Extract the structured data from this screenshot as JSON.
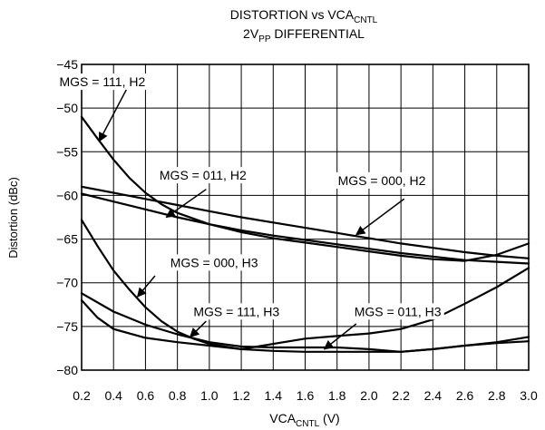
{
  "chart_data": {
    "type": "line",
    "title": {
      "line1_prefix": "DISTORTION vs VCA",
      "line1_sub": "CNTL",
      "line2_prefix": "2V",
      "line2_sub": "PP",
      "line2_suffix": " DIFFERENTIAL"
    },
    "xlabel": {
      "prefix": "VCA",
      "sub": "CNTL",
      "suffix": " (V)"
    },
    "ylabel": "Distortion (dBc)",
    "xlim": [
      0.2,
      3.0
    ],
    "ylim": [
      -80,
      -45
    ],
    "x_ticks": [
      0.2,
      0.4,
      0.6,
      0.8,
      1.0,
      1.2,
      1.4,
      1.6,
      1.8,
      2.0,
      2.2,
      2.4,
      2.6,
      2.8,
      3.0
    ],
    "x_tick_labels": [
      "0.2",
      "0.4",
      "0.6",
      "0.8",
      "1.0",
      "1.2",
      "1.4",
      "1.6",
      "1.8",
      "2.0",
      "2.2",
      "2.4",
      "2.6",
      "2.8",
      "3.0"
    ],
    "y_ticks": [
      -45,
      -50,
      -55,
      -60,
      -65,
      -70,
      -75,
      -80
    ],
    "y_tick_labels": [
      "−45",
      "−50",
      "−55",
      "−60",
      "−65",
      "−70",
      "−75",
      "−80"
    ],
    "grid": true,
    "line_color": "#000000",
    "grid_color": "#000000",
    "series": [
      {
        "name": "MGS = 111, H2",
        "x": [
          0.2,
          0.3,
          0.4,
          0.5,
          0.6,
          0.7,
          0.8,
          1.0,
          1.2,
          1.4,
          1.6,
          1.8,
          2.0,
          2.2,
          2.4,
          2.6,
          2.8,
          3.0
        ],
        "y": [
          -51,
          -53.5,
          -55.9,
          -58.0,
          -59.7,
          -61.0,
          -62.0,
          -63.3,
          -64.2,
          -64.9,
          -65.4,
          -65.9,
          -66.4,
          -66.9,
          -67.3,
          -67.5,
          -66.8,
          -65.5
        ]
      },
      {
        "name": "MGS = 011, H2",
        "x": [
          0.2,
          0.4,
          0.6,
          0.8,
          1.0,
          1.2,
          1.4,
          1.6,
          1.8,
          2.0,
          2.2,
          2.4,
          2.6,
          2.8,
          3.0
        ],
        "y": [
          -59.8,
          -60.7,
          -61.6,
          -62.5,
          -63.3,
          -64.0,
          -64.6,
          -65.1,
          -65.6,
          -66.1,
          -66.6,
          -67.0,
          -67.4,
          -67.6,
          -67.8
        ]
      },
      {
        "name": "MGS = 000, H2",
        "x": [
          0.2,
          0.4,
          0.6,
          0.8,
          1.0,
          1.2,
          1.4,
          1.6,
          1.8,
          2.0,
          2.2,
          2.4,
          2.6,
          2.8,
          3.0
        ],
        "y": [
          -59.0,
          -59.7,
          -60.4,
          -61.1,
          -61.8,
          -62.5,
          -63.1,
          -63.7,
          -64.3,
          -64.9,
          -65.5,
          -66.0,
          -66.5,
          -66.9,
          -67.2
        ]
      },
      {
        "name": "MGS = 000, H3",
        "x": [
          0.2,
          0.3,
          0.4,
          0.5,
          0.6,
          0.7,
          0.8,
          0.9,
          1.0,
          1.2,
          1.4,
          1.6,
          1.8,
          2.0,
          2.2,
          2.4,
          2.6,
          2.8,
          3.0
        ],
        "y": [
          -62.8,
          -65.8,
          -68.6,
          -70.8,
          -72.8,
          -74.4,
          -75.6,
          -76.4,
          -77.0,
          -77.6,
          -77.8,
          -77.9,
          -77.9,
          -77.9,
          -77.9,
          -77.6,
          -77.2,
          -76.9,
          -76.7
        ]
      },
      {
        "name": "MGS = 111, H3",
        "x": [
          0.2,
          0.4,
          0.6,
          0.8,
          1.0,
          1.2,
          1.4,
          1.6,
          1.8,
          2.0,
          2.2,
          2.4,
          2.6,
          2.8,
          3.0
        ],
        "y": [
          -71.2,
          -73.3,
          -74.8,
          -75.9,
          -76.8,
          -77.3,
          -77.4,
          -77.4,
          -77.4,
          -77.6,
          -77.9,
          -77.6,
          -77.2,
          -76.8,
          -76.2
        ]
      },
      {
        "name": "MGS = 011, H3",
        "x": [
          0.2,
          0.3,
          0.4,
          0.6,
          0.8,
          1.0,
          1.2,
          1.4,
          1.6,
          1.8,
          2.0,
          2.2,
          2.4,
          2.6,
          2.8,
          3.0
        ],
        "y": [
          -72.0,
          -74.0,
          -75.3,
          -76.3,
          -76.8,
          -77.2,
          -77.6,
          -77.0,
          -76.4,
          -76.1,
          -75.8,
          -75.3,
          -74.2,
          -72.4,
          -70.5,
          -68.3
        ]
      }
    ],
    "annotations": [
      {
        "text": "MGS = 111, H2",
        "tx": 0.33,
        "ty": -47.5,
        "ax": 0.48,
        "ay": -47.9,
        "bx": 0.31,
        "by": -53.8
      },
      {
        "text": "MGS = 011, H2",
        "tx": 0.96,
        "ty": -58.2,
        "ax": 0.98,
        "ay": -59.3,
        "bx": 0.73,
        "by": -62.5
      },
      {
        "text": "MGS = 000, H2",
        "tx": 2.08,
        "ty": -58.8,
        "ax": 2.22,
        "ay": -60.4,
        "bx": 1.92,
        "by": -64.5
      },
      {
        "text": "MGS = 000, H3",
        "tx": 1.03,
        "ty": -68.2,
        "ax": 0.66,
        "ay": -69.2,
        "bx": 0.55,
        "by": -71.6
      },
      {
        "text": "MGS = 111, H3",
        "tx": 1.17,
        "ty": -73.8,
        "ax": 0.98,
        "ay": -74.4,
        "bx": 0.88,
        "by": -76.2
      },
      {
        "text": "MGS = 011, H3",
        "tx": 2.18,
        "ty": -73.8,
        "ax": 1.92,
        "ay": -74.7,
        "bx": 1.72,
        "by": -77.6
      }
    ]
  }
}
